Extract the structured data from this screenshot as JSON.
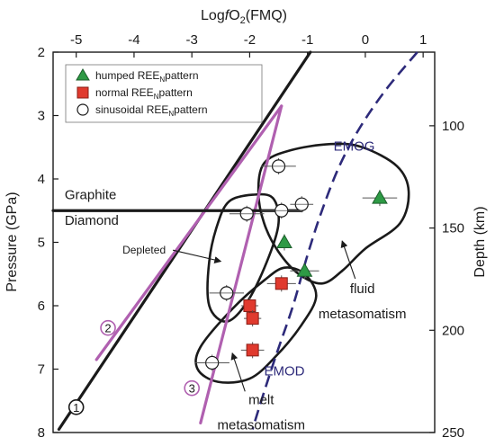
{
  "chart_data": {
    "type": "scatter",
    "xlabel_top": "Logf O₂(FMQ)",
    "xlabel_top_parts": [
      "Log",
      "f",
      "O",
      "2",
      "(FMQ)"
    ],
    "ylabel_left": "Pressure (GPa)",
    "ylabel_right": "Depth (km)",
    "xlim": [
      -5.4,
      1.2
    ],
    "ylim": [
      2,
      8
    ],
    "depth_range_km": [
      64,
      250
    ],
    "x_ticks": [
      -5,
      -4,
      -3,
      -2,
      -1,
      0,
      1
    ],
    "x_tick_labels": [
      "-5",
      "-4",
      "-3",
      "-2",
      "-1",
      "0",
      "1"
    ],
    "y_ticks": [
      2,
      3,
      4,
      5,
      6,
      7,
      8
    ],
    "y_tick_labels": [
      "2",
      "3",
      "4",
      "5",
      "6",
      "7",
      "8"
    ],
    "depth_ticks": [
      100,
      150,
      200,
      250
    ],
    "depth_tick_labels": [
      "100",
      "150",
      "200",
      "250"
    ],
    "legend_position": "top-left",
    "legend": [
      {
        "marker": "triangle",
        "color": "#2e9a45",
        "text": "humped REE",
        "sub": "N",
        "suffix": "pattern"
      },
      {
        "marker": "square",
        "color": "#e03a2e",
        "text": "normal REE",
        "sub": "N",
        "suffix": "pattern"
      },
      {
        "marker": "circle",
        "color": "#ffffff",
        "text": "sinusoidal REE",
        "sub": "N",
        "suffix": "pattern"
      }
    ],
    "series": [
      {
        "name": "humped REE pattern",
        "marker": "triangle",
        "color": "#2e9a45",
        "points": [
          [
            0.25,
            4.3,
            0.3
          ],
          [
            -1.4,
            5.0,
            0.0
          ],
          [
            -1.05,
            5.45,
            0.25
          ]
        ]
      },
      {
        "name": "normal REE pattern",
        "marker": "square",
        "color": "#e03a2e",
        "points": [
          [
            -1.45,
            5.65,
            0.25
          ],
          [
            -2.0,
            6.0,
            0.15
          ],
          [
            -1.95,
            6.2,
            0.15
          ],
          [
            -1.95,
            6.7,
            0.2
          ]
        ]
      },
      {
        "name": "sinusoidal REE pattern",
        "marker": "circle",
        "color": "#ffffff",
        "points": [
          [
            -1.5,
            3.8,
            0.3
          ],
          [
            -1.1,
            4.4,
            0.2
          ],
          [
            -1.45,
            4.5,
            0.35
          ],
          [
            -2.05,
            4.55,
            0.3
          ],
          [
            -2.4,
            5.8,
            0.3
          ],
          [
            -2.65,
            6.9,
            0.3
          ]
        ]
      }
    ],
    "lines": [
      {
        "name": "line 1",
        "label": "1",
        "color": "#1a1a1a",
        "points": [
          [
            -5.3,
            7.95
          ],
          [
            -0.95,
            2.0
          ]
        ],
        "label_at": [
          -5.0,
          7.6
        ]
      },
      {
        "name": "line 2",
        "label": "2",
        "color": "#b060b0",
        "points": [
          [
            -4.65,
            6.85
          ],
          [
            -1.45,
            2.85
          ]
        ],
        "label_at": [
          -4.45,
          6.35
        ]
      },
      {
        "name": "line 3",
        "label": "3",
        "color": "#b060b0",
        "points": [
          [
            -2.85,
            7.85
          ],
          [
            -1.45,
            2.85
          ]
        ],
        "label_at": [
          -3.0,
          7.3
        ]
      },
      {
        "name": "graphite-diamond",
        "color": "#1a1a1a",
        "points": [
          [
            -5.4,
            4.5
          ],
          [
            -1.1,
            4.5
          ]
        ]
      }
    ],
    "curves": [
      {
        "name": "EMOG",
        "label": "EMOG",
        "color": "#2d2a7a",
        "dashed": true,
        "points": [
          [
            0.9,
            2.0
          ],
          [
            0.35,
            2.6
          ],
          [
            -0.1,
            3.2
          ],
          [
            -0.45,
            3.8
          ],
          [
            -0.75,
            4.5
          ],
          [
            -1.0,
            5.2
          ],
          [
            -1.25,
            6.0
          ],
          [
            -1.55,
            6.8
          ],
          [
            -1.8,
            7.5
          ],
          [
            -1.95,
            7.95
          ]
        ],
        "label_at": [
          -0.55,
          3.55
        ]
      },
      {
        "name": "EMOD",
        "label": "EMOD",
        "color": "#2d2a7a",
        "label_at": [
          -1.75,
          7.1
        ]
      }
    ],
    "fields": [
      {
        "name": "fluid metasomatism",
        "color": "#1a1a1a",
        "points": [
          [
            -1.75,
            3.75
          ],
          [
            -1.3,
            3.55
          ],
          [
            -0.6,
            3.45
          ],
          [
            -0.05,
            3.5
          ],
          [
            0.55,
            3.8
          ],
          [
            0.75,
            4.2
          ],
          [
            0.6,
            4.7
          ],
          [
            0.0,
            5.1
          ],
          [
            -0.4,
            5.45
          ],
          [
            -0.75,
            5.65
          ],
          [
            -1.15,
            5.5
          ],
          [
            -1.5,
            5.15
          ],
          [
            -1.75,
            4.7
          ],
          [
            -1.85,
            4.2
          ]
        ]
      },
      {
        "name": "Depleted",
        "color": "#1a1a1a",
        "points": [
          [
            -2.35,
            4.35
          ],
          [
            -1.95,
            4.25
          ],
          [
            -1.6,
            4.3
          ],
          [
            -1.5,
            4.7
          ],
          [
            -1.7,
            5.3
          ],
          [
            -2.05,
            5.95
          ],
          [
            -2.4,
            6.25
          ],
          [
            -2.7,
            6.0
          ],
          [
            -2.7,
            5.3
          ],
          [
            -2.55,
            4.7
          ]
        ]
      },
      {
        "name": "melt metasomatism",
        "color": "#1a1a1a",
        "points": [
          [
            -1.4,
            5.4
          ],
          [
            -1.05,
            5.5
          ],
          [
            -0.85,
            5.85
          ],
          [
            -1.1,
            6.3
          ],
          [
            -1.55,
            6.8
          ],
          [
            -2.0,
            7.15
          ],
          [
            -2.55,
            7.2
          ],
          [
            -2.9,
            7.0
          ],
          [
            -2.85,
            6.65
          ],
          [
            -2.3,
            6.05
          ],
          [
            -1.75,
            5.6
          ]
        ]
      }
    ],
    "annotations": [
      {
        "name": "graphite",
        "text": "Graphite",
        "at": [
          -5.2,
          4.32
        ]
      },
      {
        "name": "diamond",
        "text": "Diamond",
        "at": [
          -5.2,
          4.72
        ]
      },
      {
        "name": "depleted",
        "text": "Depleted",
        "at": [
          -4.2,
          5.18
        ],
        "arrow_to": [
          -2.5,
          5.3
        ]
      },
      {
        "name": "fluid-1",
        "text": "fluid",
        "at": [
          -0.05,
          5.8
        ],
        "arrow_to": [
          -0.4,
          4.98
        ]
      },
      {
        "name": "fluid-2",
        "text": "metasomatism",
        "at": [
          -0.05,
          6.2
        ]
      },
      {
        "name": "melt-1",
        "text": "melt",
        "at": [
          -1.8,
          7.55
        ],
        "arrow_to": [
          -2.3,
          6.75
        ]
      },
      {
        "name": "melt-2",
        "text": "metasomatism",
        "at": [
          -1.8,
          7.95
        ]
      }
    ]
  }
}
